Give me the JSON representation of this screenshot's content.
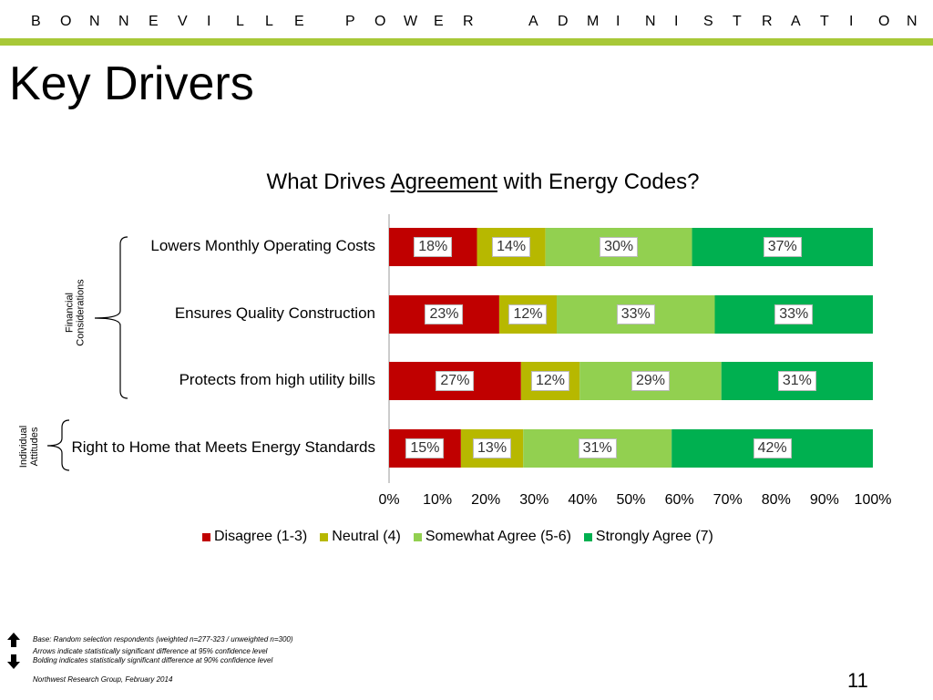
{
  "header": {
    "org_letters": [
      "B",
      "O",
      "N",
      "N",
      "E",
      "V",
      "I",
      "L",
      "L",
      "E",
      "P",
      "O",
      "W",
      "E",
      "R",
      "A",
      "D",
      "M",
      "I",
      "N",
      "I",
      "S",
      "T",
      "R",
      "A",
      "T",
      "I",
      "O",
      "N"
    ],
    "title": "Key Drivers"
  },
  "colors": {
    "accent_rule": "#a8c838",
    "disagree": "#c00000",
    "neutral": "#b7b800",
    "somewhat": "#92d050",
    "strongly": "#00b050"
  },
  "chart_data": {
    "type": "bar",
    "orientation": "horizontal-stacked",
    "title_parts": [
      "What Drives ",
      "Agreement",
      " with Energy Codes?"
    ],
    "categories": [
      "Lowers Monthly Operating Costs",
      "Ensures Quality Construction",
      "Protects from high utility bills",
      "Right to Home that Meets Energy Standards"
    ],
    "groups": [
      {
        "label": "Financial Considerations",
        "lines": [
          "Financial",
          "Considerations"
        ]
      },
      {
        "label": "Individual Attitudes",
        "lines": [
          "Individual",
          "Attitudes"
        ]
      }
    ],
    "series": [
      {
        "name": "Disagree (1-3)",
        "values": [
          18,
          23,
          27,
          15
        ]
      },
      {
        "name": "Neutral (4)",
        "values": [
          14,
          12,
          12,
          13
        ]
      },
      {
        "name": "Somewhat Agree (5-6)",
        "values": [
          30,
          33,
          29,
          31
        ]
      },
      {
        "name": "Strongly Agree (7)",
        "values": [
          37,
          33,
          31,
          42
        ]
      }
    ],
    "xlim": [
      0,
      100
    ],
    "xticks": [
      "0%",
      "10%",
      "20%",
      "30%",
      "40%",
      "50%",
      "60%",
      "70%",
      "80%",
      "90%",
      "100%"
    ],
    "legend_position": "bottom",
    "grid": false
  },
  "footer": {
    "base": "Base: Random selection respondents (weighted n=277-323 / unweighted n=300)",
    "arrows_note": "Arrows indicate statistically significant difference at 95% confidence level",
    "bolding_note": "Bolding indicates statistically significant difference at 90% confidence level",
    "source": "Northwest Research Group, February 2014",
    "page_number": "11"
  }
}
